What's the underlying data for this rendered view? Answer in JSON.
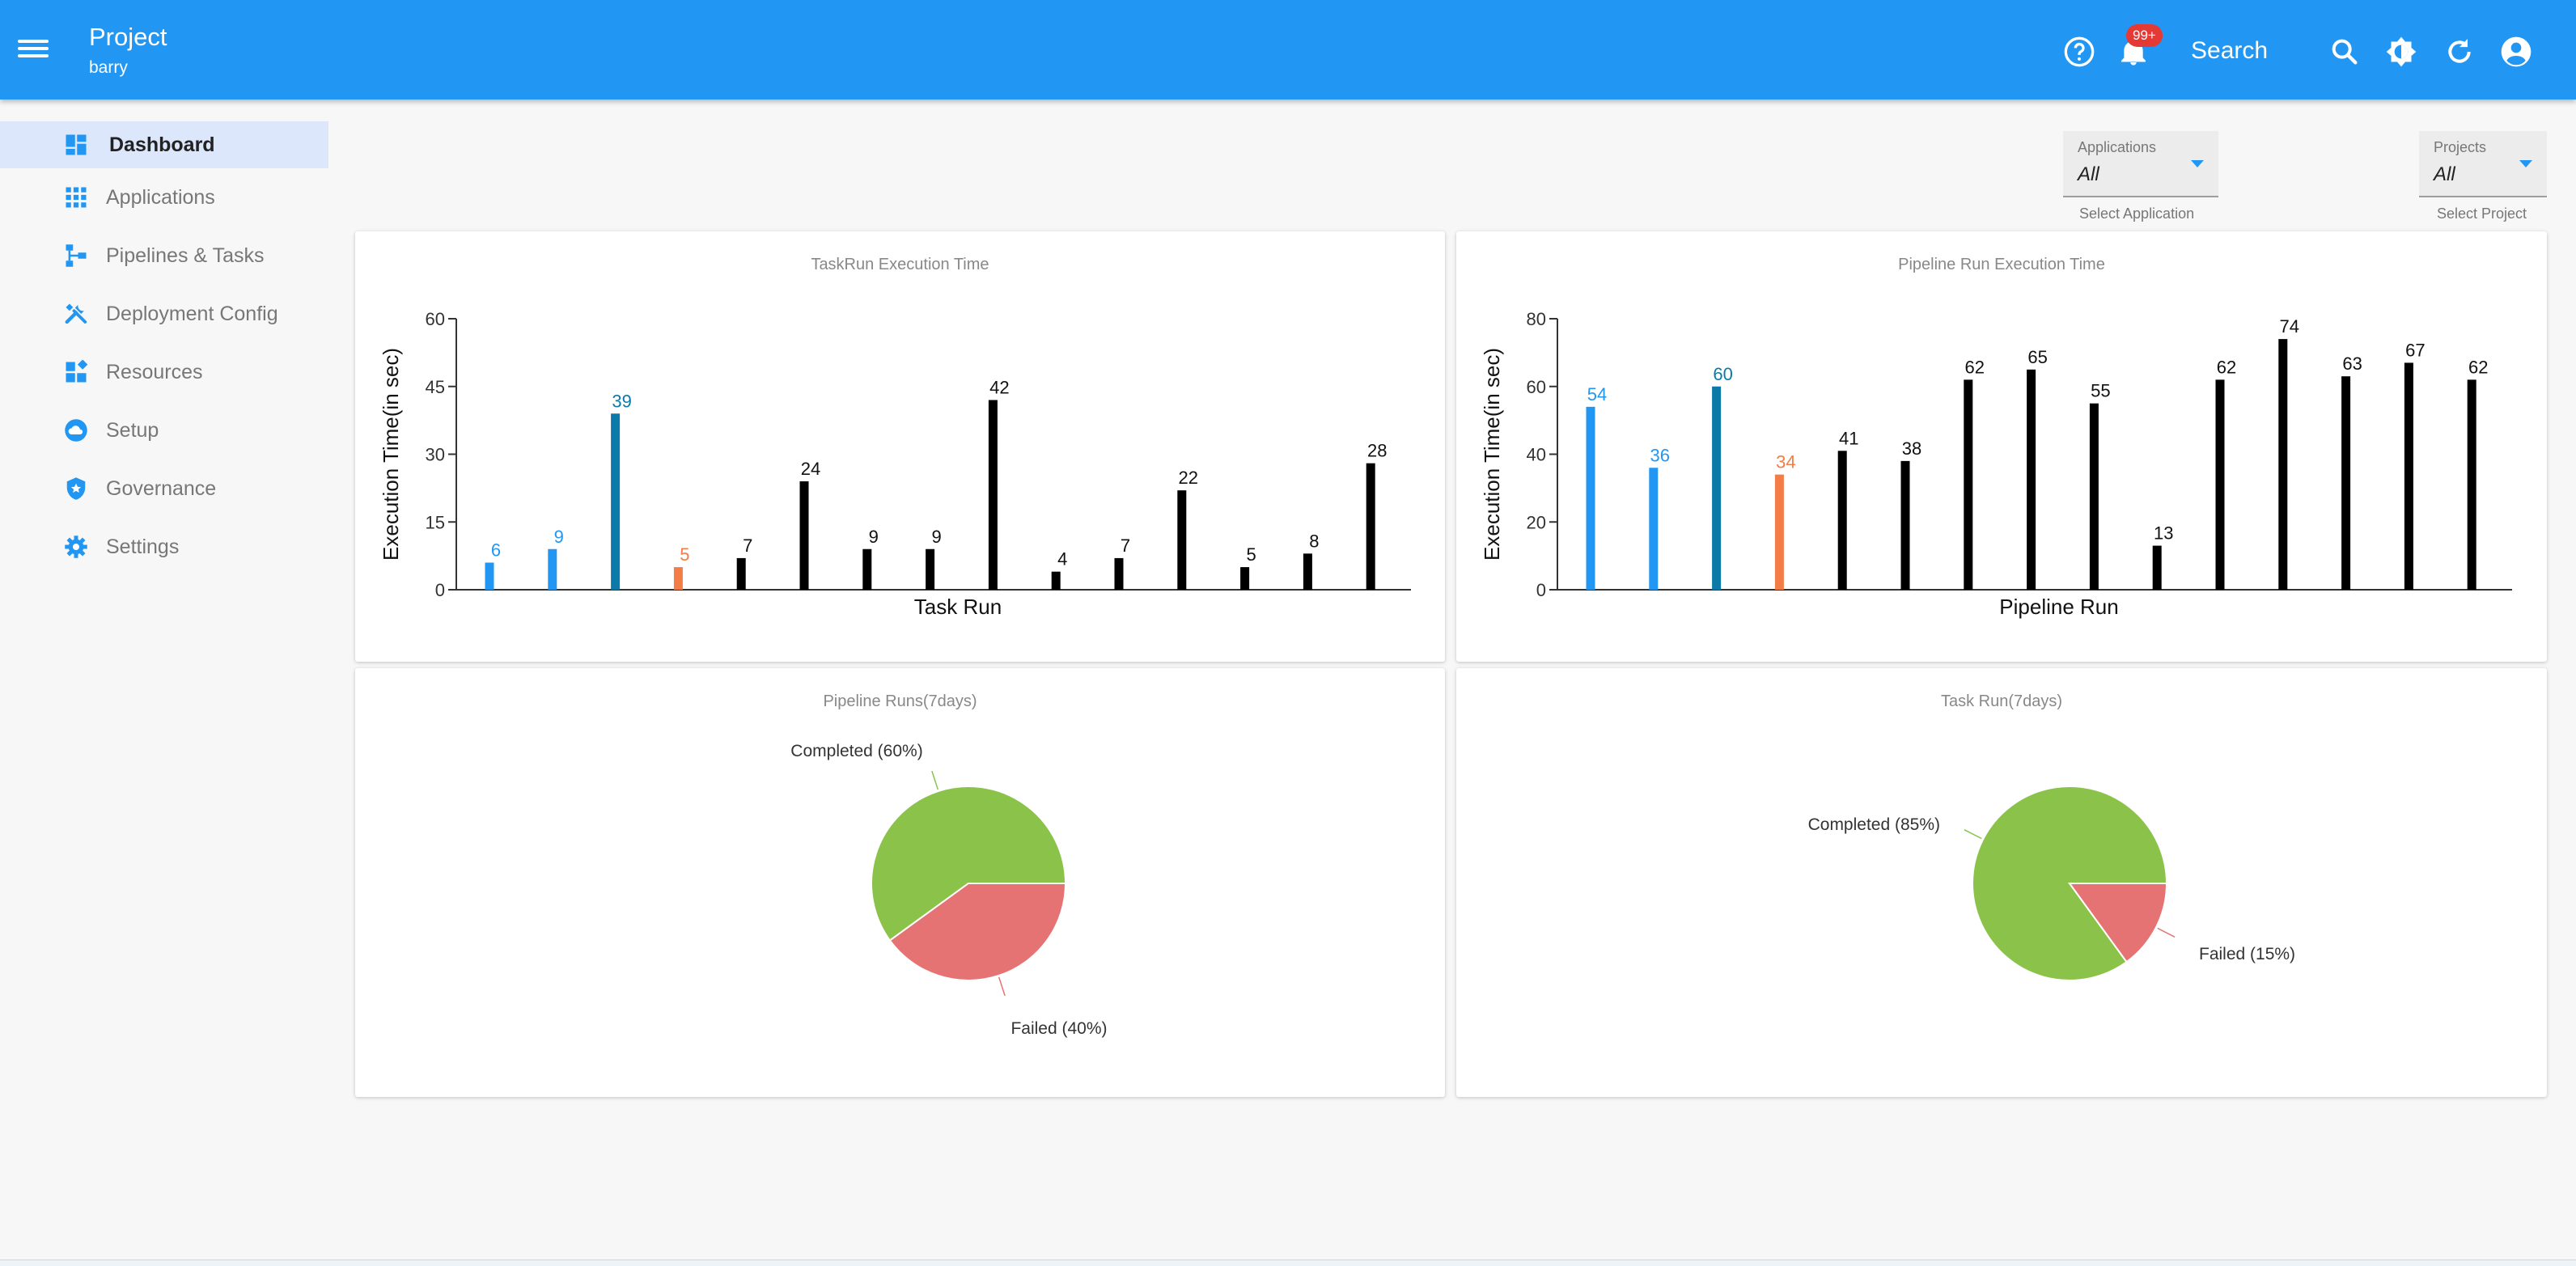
{
  "header": {
    "title": "Project",
    "subtitle": "barry",
    "notification_count": "99+",
    "search_label": "Search"
  },
  "colors": {
    "primary": "#2196f3",
    "teal": "#0b7aa8",
    "orange": "#f47c46",
    "black": "#000000",
    "completed": "#8bc34a",
    "failed": "#e57373"
  },
  "sidebar": {
    "items": [
      {
        "label": "Dashboard",
        "icon": "dashboard-icon",
        "active": true
      },
      {
        "label": "Applications",
        "icon": "apps-grid-icon"
      },
      {
        "label": "Pipelines & Tasks",
        "icon": "pipeline-icon"
      },
      {
        "label": "Deployment Config",
        "icon": "tools-icon"
      },
      {
        "label": "Resources",
        "icon": "widgets-icon"
      },
      {
        "label": "Setup",
        "icon": "cloud-icon"
      },
      {
        "label": "Governance",
        "icon": "shield-icon"
      },
      {
        "label": "Settings",
        "icon": "gear-icon"
      }
    ]
  },
  "filters": {
    "applications": {
      "label": "Applications",
      "value": "All",
      "helper": "Select Application"
    },
    "projects": {
      "label": "Projects",
      "value": "All",
      "helper": "Select Project"
    }
  },
  "chart_data": [
    {
      "type": "bar",
      "title": "TaskRun Execution Time",
      "xlabel": "Task Run",
      "ylabel": "Execution Time(in sec)",
      "ylim": [
        0,
        60
      ],
      "yticks": [
        0,
        15,
        30,
        45,
        60
      ],
      "values": [
        6,
        9,
        39,
        5,
        7,
        24,
        9,
        9,
        42,
        4,
        7,
        22,
        5,
        8,
        28
      ],
      "bar_colors": [
        "#2196f3",
        "#2196f3",
        "#0b7aa8",
        "#f47c46",
        "#000000",
        "#000000",
        "#000000",
        "#000000",
        "#000000",
        "#000000",
        "#000000",
        "#000000",
        "#000000",
        "#000000",
        "#000000"
      ],
      "data_labels": [
        "6",
        "9",
        "39",
        "5",
        "7",
        "24",
        "9",
        "9",
        "42",
        "4",
        "7",
        "22",
        "5",
        "8",
        "28"
      ]
    },
    {
      "type": "bar",
      "title": "Pipeline Run Execution Time",
      "xlabel": "Pipeline Run",
      "ylabel": "Execution Time(in sec)",
      "ylim": [
        0,
        80
      ],
      "yticks": [
        0,
        20,
        40,
        60,
        80
      ],
      "values": [
        54,
        36,
        60,
        34,
        41,
        38,
        62,
        65,
        55,
        13,
        62,
        74,
        63,
        67,
        62
      ],
      "bar_colors": [
        "#2196f3",
        "#2196f3",
        "#0b7aa8",
        "#f47c46",
        "#000000",
        "#000000",
        "#000000",
        "#000000",
        "#000000",
        "#000000",
        "#000000",
        "#000000",
        "#000000",
        "#000000",
        "#000000"
      ],
      "data_labels": [
        "54",
        "36",
        "60",
        "34",
        "41",
        "38",
        "62",
        "65",
        "55",
        "13",
        "62",
        "74",
        "63",
        "67",
        "62"
      ]
    },
    {
      "type": "pie",
      "title": "Pipeline Runs(7days)",
      "slices": [
        {
          "name": "Completed",
          "value": 60,
          "label": "Completed (60%)",
          "color": "#8bc34a"
        },
        {
          "name": "Failed",
          "value": 40,
          "label": "Failed (40%)",
          "color": "#e57373"
        }
      ]
    },
    {
      "type": "pie",
      "title": "Task Run(7days)",
      "slices": [
        {
          "name": "Completed",
          "value": 85,
          "label": "Completed (85%)",
          "color": "#8bc34a"
        },
        {
          "name": "Failed",
          "value": 15,
          "label": "Failed (15%)",
          "color": "#e57373"
        }
      ]
    }
  ]
}
